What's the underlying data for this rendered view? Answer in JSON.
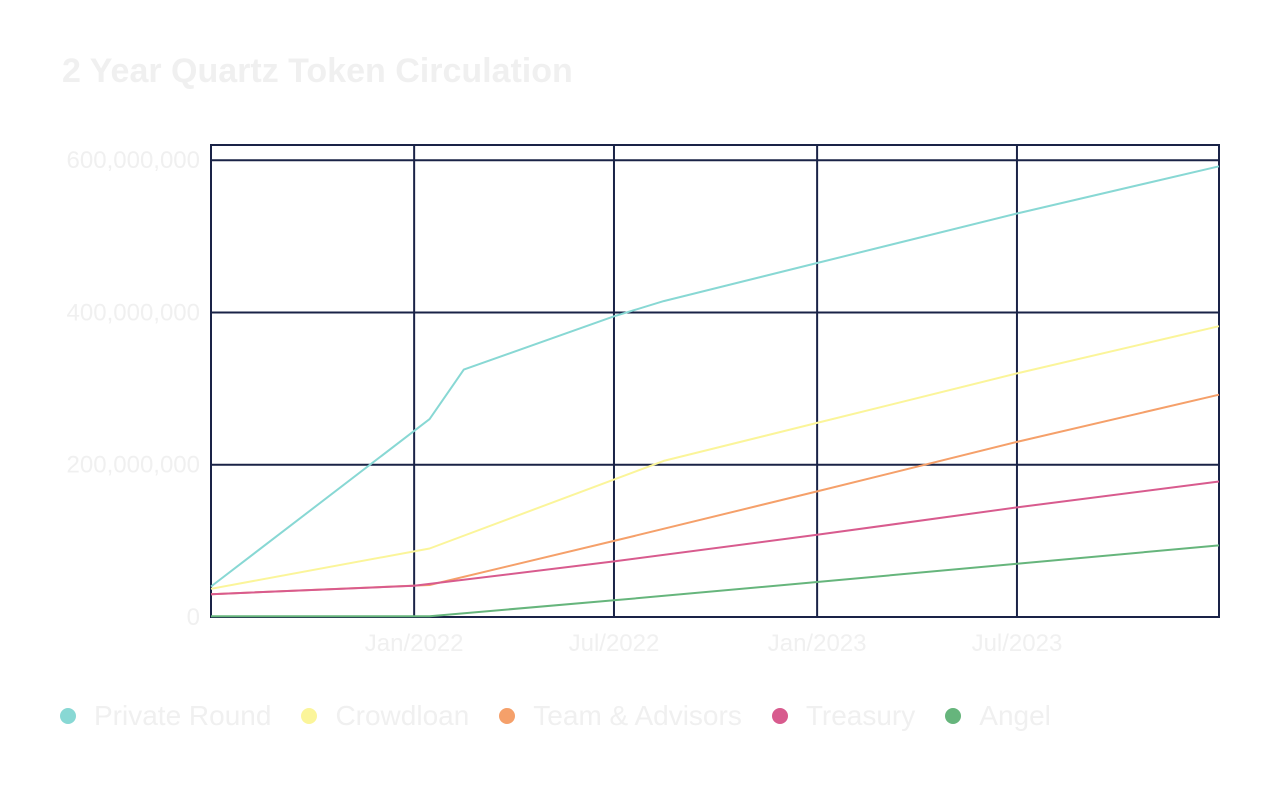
{
  "chart_data": {
    "type": "line",
    "title": "2 Year Quartz Token Circulation",
    "xlabel": "",
    "ylabel": "",
    "x": [
      "2021-07-01",
      "2022-01-01",
      "2022-01-15",
      "2022-02-15",
      "2022-07-01",
      "2022-08-15",
      "2023-01-01",
      "2023-07-01",
      "2023-12-31"
    ],
    "x_range": [
      "2021-07-01",
      "2023-12-31"
    ],
    "x_ticks": [
      "2022-01-01",
      "2022-07-01",
      "2023-01-01",
      "2023-07-01"
    ],
    "x_tick_labels": [
      "Jan/2022",
      "Jul/2022",
      "Jan/2023",
      "Jul/2023"
    ],
    "ylim": [
      0,
      620000000
    ],
    "y_ticks": [
      0,
      200000000,
      400000000,
      600000000
    ],
    "y_tick_labels": [
      "0",
      "200,000,000",
      "400,000,000",
      "600,000,000"
    ],
    "grid": true,
    "legend": "bottom-left",
    "series": [
      {
        "name": "Private Round",
        "color": "#88d8d4",
        "points": [
          [
            "2021-07-01",
            40000000
          ],
          [
            "2022-01-15",
            260000000
          ],
          [
            "2022-02-15",
            325000000
          ],
          [
            "2022-07-01",
            395000000
          ],
          [
            "2022-08-15",
            415000000
          ],
          [
            "2023-01-01",
            465000000
          ],
          [
            "2023-07-01",
            530000000
          ],
          [
            "2023-12-31",
            592000000
          ]
        ]
      },
      {
        "name": "Crowdloan",
        "color": "#fbf59a",
        "points": [
          [
            "2021-07-01",
            37000000
          ],
          [
            "2022-01-15",
            90000000
          ],
          [
            "2022-08-15",
            205000000
          ],
          [
            "2023-01-01",
            255000000
          ],
          [
            "2023-07-01",
            320000000
          ],
          [
            "2023-12-31",
            382000000
          ]
        ]
      },
      {
        "name": "Team & Advisors",
        "color": "#f5a06a",
        "points": [
          [
            "2021-07-01",
            30000000
          ],
          [
            "2022-01-15",
            42000000
          ],
          [
            "2022-07-01",
            100000000
          ],
          [
            "2023-01-01",
            165000000
          ],
          [
            "2023-07-01",
            230000000
          ],
          [
            "2023-12-31",
            292000000
          ]
        ]
      },
      {
        "name": "Treasury",
        "color": "#d85b8e",
        "points": [
          [
            "2021-07-01",
            30000000
          ],
          [
            "2022-01-01",
            41000000
          ],
          [
            "2022-07-01",
            73000000
          ],
          [
            "2023-01-01",
            108000000
          ],
          [
            "2023-07-01",
            144000000
          ],
          [
            "2023-12-31",
            178000000
          ]
        ]
      },
      {
        "name": "Angel",
        "color": "#66b57c",
        "points": [
          [
            "2021-07-01",
            1000000
          ],
          [
            "2022-01-15",
            1000000
          ],
          [
            "2022-07-01",
            22000000
          ],
          [
            "2023-01-01",
            46000000
          ],
          [
            "2023-07-01",
            70000000
          ],
          [
            "2023-12-31",
            94000000
          ]
        ]
      }
    ]
  }
}
